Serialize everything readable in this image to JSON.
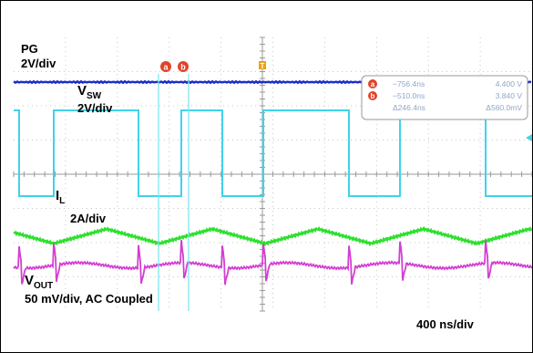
{
  "chart_data": {
    "type": "line",
    "title": "",
    "x_scale": "400 ns/div",
    "channels": [
      {
        "name": "PG",
        "scale": "2V/div",
        "color": "#1d2fc8",
        "waveform": "flat high"
      },
      {
        "name": "VSW",
        "name_main": "V",
        "name_sub": "SW",
        "scale": "2V/div",
        "color": "#3fd3e8",
        "waveform": "square wave, 5 pulses in view"
      },
      {
        "name": "IL",
        "name_main": "I",
        "name_sub": "L",
        "scale": "2A/div",
        "color": "#2ee02e",
        "waveform": "triangle ripple"
      },
      {
        "name": "VOUT",
        "name_main": "V",
        "name_sub": "OUT",
        "scale": "50 mV/div, AC Coupled",
        "color": "#d23fd2",
        "waveform": "ripple with switching spikes"
      }
    ],
    "cursors": {
      "markers": [
        "a",
        "b"
      ],
      "trigger_marker": "T",
      "readout": [
        {
          "marker": "a",
          "time": "−756.4ns",
          "value": "4.400 V"
        },
        {
          "marker": "b",
          "time": "−510.0ns",
          "value": "3.840 V"
        },
        {
          "marker": "Δ",
          "time": "Δ246.4ns",
          "value": "Δ560.0mV"
        }
      ]
    }
  }
}
